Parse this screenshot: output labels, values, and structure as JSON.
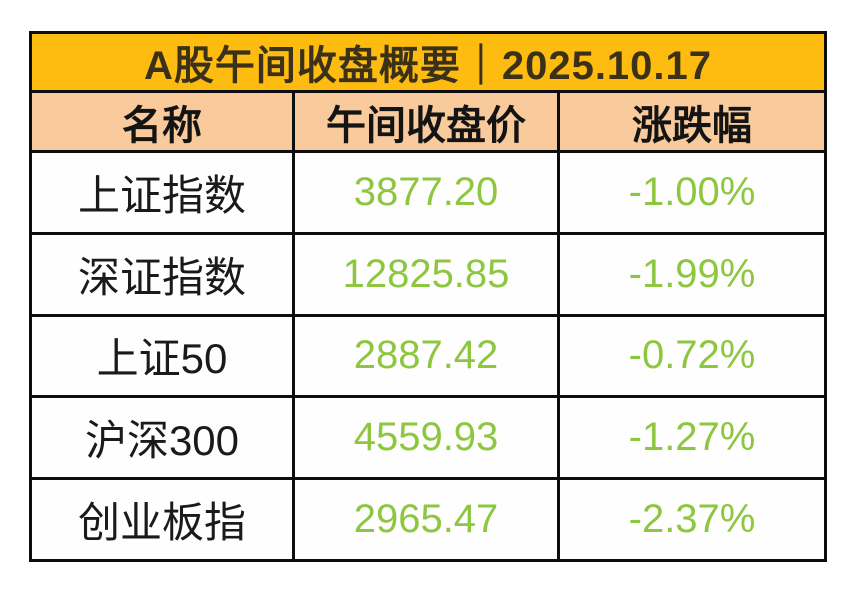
{
  "table": {
    "title": "A股午间收盘概要｜2025.10.17",
    "columns": [
      "名称",
      "午间收盘价",
      "涨跌幅"
    ],
    "rows": [
      {
        "name": "上证指数",
        "price": "3877.20",
        "change": "-1.00%"
      },
      {
        "name": "深证指数",
        "price": "12825.85",
        "change": "-1.99%"
      },
      {
        "name": "上证50",
        "price": "2887.42",
        "change": "-0.72%"
      },
      {
        "name": "沪深300",
        "price": "4559.93",
        "change": "-1.27%"
      },
      {
        "name": "创业板指",
        "price": "2965.47",
        "change": "-2.37%"
      }
    ],
    "colors": {
      "title_bg": "#fdbc0f",
      "title_fg": "#3a3118",
      "header_bg": "#f9cb9c",
      "header_fg": "#141414",
      "row_bg": "#fffefe",
      "name_fg": "#1a1a1a",
      "value_fg": "#8dc63f",
      "grid_line": "#0d0d0d",
      "canvas_bg": "#ffffff"
    }
  },
  "chart_data": {
    "type": "table",
    "title": "A股午间收盘概要｜2025.10.17",
    "columns": [
      "名称",
      "午间收盘价",
      "涨跌幅"
    ],
    "rows": [
      [
        "上证指数",
        3877.2,
        "-1.00%"
      ],
      [
        "深证指数",
        12825.85,
        "-1.99%"
      ],
      [
        "上证50",
        2887.42,
        "-0.72%"
      ],
      [
        "沪深300",
        4559.93,
        "-1.27%"
      ],
      [
        "创业板指",
        2965.47,
        "-2.37%"
      ]
    ]
  }
}
